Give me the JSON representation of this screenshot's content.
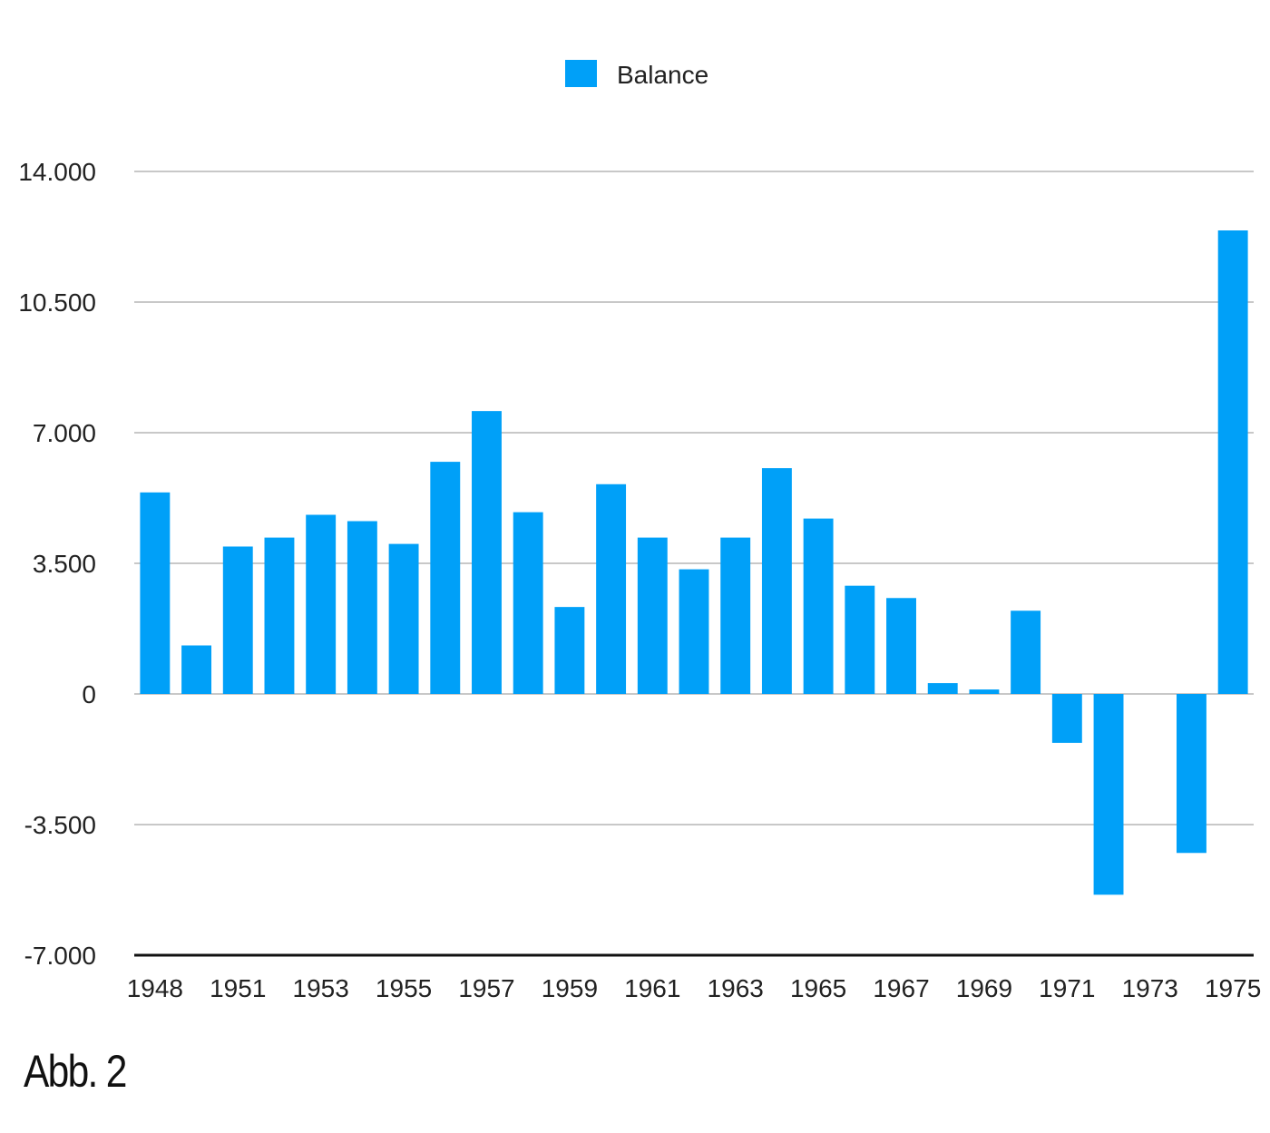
{
  "chart_data": {
    "type": "bar",
    "title": "",
    "xlabel": "",
    "ylabel": "",
    "legend": {
      "entries": [
        "Balance"
      ],
      "placement": "top-center"
    },
    "series_color": "#00a0f8",
    "ylim": [
      -7000,
      14000
    ],
    "yticks": [
      14000,
      10500,
      7000,
      3500,
      0,
      -3500,
      -7000
    ],
    "ytick_labels": [
      "14.000",
      "10.500",
      "7.000",
      "3.500",
      "0",
      "-3.500",
      "-7.000"
    ],
    "grid": true,
    "categories": [
      "1948",
      "1950",
      "1951",
      "1952",
      "1953",
      "1954",
      "1955",
      "1956",
      "1957",
      "1958",
      "1959",
      "1960",
      "1961",
      "1962",
      "1963",
      "1964",
      "1965",
      "1966",
      "1967",
      "1968",
      "1969",
      "1970",
      "1971",
      "1972",
      "1973",
      "1974",
      "1975"
    ],
    "shown_xtick_labels": [
      "1948",
      "1951",
      "1953",
      "1955",
      "1957",
      "1959",
      "1961",
      "1963",
      "1965",
      "1967",
      "1969",
      "1971",
      "1973",
      "1975"
    ],
    "series": [
      {
        "name": "Balance",
        "values": [
          5400,
          1300,
          3950,
          4190,
          4800,
          4630,
          4020,
          6220,
          7580,
          4870,
          2330,
          5620,
          4190,
          3340,
          4190,
          6050,
          4700,
          2900,
          2570,
          290,
          120,
          2230,
          -1310,
          -5380,
          0,
          -4260,
          12420
        ]
      }
    ]
  },
  "caption": "Abb. 2"
}
